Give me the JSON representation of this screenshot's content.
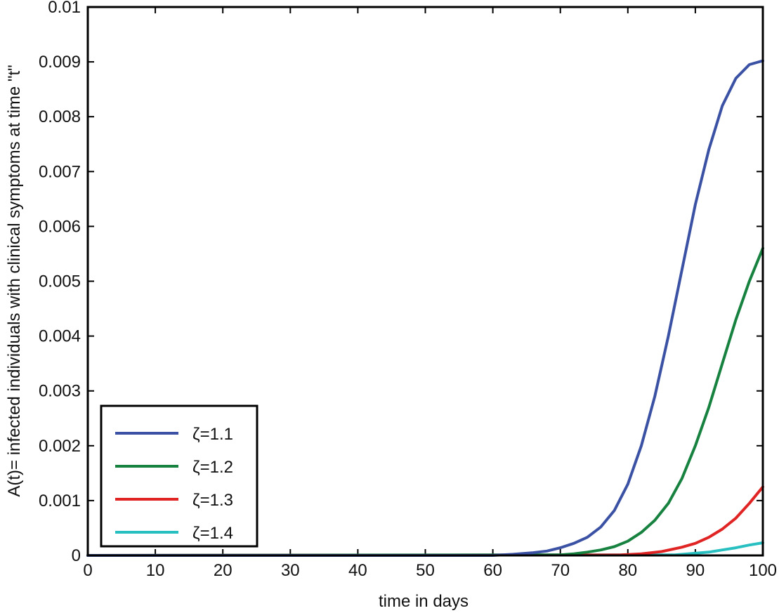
{
  "chart_data": {
    "type": "line",
    "title": "",
    "xlabel": "time in days",
    "ylabel": "A(t)= infected individuals with clinical symptoms at time \"t\"",
    "xlim": [
      0,
      100
    ],
    "ylim": [
      0,
      0.01
    ],
    "xticks": [
      0,
      10,
      20,
      30,
      40,
      50,
      60,
      70,
      80,
      90,
      100
    ],
    "xtick_labels": [
      "0",
      "10",
      "20",
      "30",
      "40",
      "50",
      "60",
      "70",
      "80",
      "90",
      "100"
    ],
    "yticks": [
      0,
      0.001,
      0.002,
      0.003,
      0.004,
      0.005,
      0.006,
      0.007,
      0.008,
      0.009,
      0.01
    ],
    "ytick_labels": [
      "0",
      "0.001",
      "0.002",
      "0.003",
      "0.004",
      "0.005",
      "0.006",
      "0.007",
      "0.008",
      "0.009",
      "0.01"
    ],
    "grid": false,
    "legend_position": "bottom-left",
    "series": [
      {
        "name": "ζ=1.1",
        "color": "#3b52a4",
        "x": [
          0,
          60,
          63,
          66,
          68,
          70,
          72,
          74,
          76,
          78,
          80,
          82,
          84,
          86,
          88,
          90,
          92,
          94,
          96,
          98,
          100
        ],
        "y": [
          0,
          0,
          2e-05,
          5e-05,
          8e-05,
          0.00014,
          0.00022,
          0.00033,
          0.00052,
          0.00082,
          0.0013,
          0.002,
          0.0029,
          0.004,
          0.0052,
          0.0064,
          0.0074,
          0.0082,
          0.0087,
          0.00895,
          0.00902
        ]
      },
      {
        "name": "ζ=1.2",
        "color": "#17823f",
        "x": [
          0,
          70,
          72,
          74,
          76,
          78,
          80,
          82,
          84,
          86,
          88,
          90,
          92,
          94,
          96,
          98,
          100
        ],
        "y": [
          0,
          1e-05,
          3e-05,
          6e-05,
          0.0001,
          0.00016,
          0.00026,
          0.00042,
          0.00064,
          0.00095,
          0.0014,
          0.002,
          0.0027,
          0.0035,
          0.0043,
          0.005,
          0.0056
        ]
      },
      {
        "name": "ζ=1.3",
        "color": "#e02424",
        "x": [
          0,
          79,
          82,
          85,
          88,
          90,
          92,
          94,
          96,
          98,
          100
        ],
        "y": [
          0,
          1e-05,
          3e-05,
          7e-05,
          0.00015,
          0.00022,
          0.00033,
          0.00048,
          0.00068,
          0.00095,
          0.00125
        ]
      },
      {
        "name": "ζ=1.4",
        "color": "#27bfc0",
        "x": [
          0,
          87,
          90,
          92,
          94,
          96,
          98,
          100
        ],
        "y": [
          0,
          1e-05,
          4e-05,
          6e-05,
          0.0001,
          0.00014,
          0.00019,
          0.00023
        ]
      }
    ]
  }
}
